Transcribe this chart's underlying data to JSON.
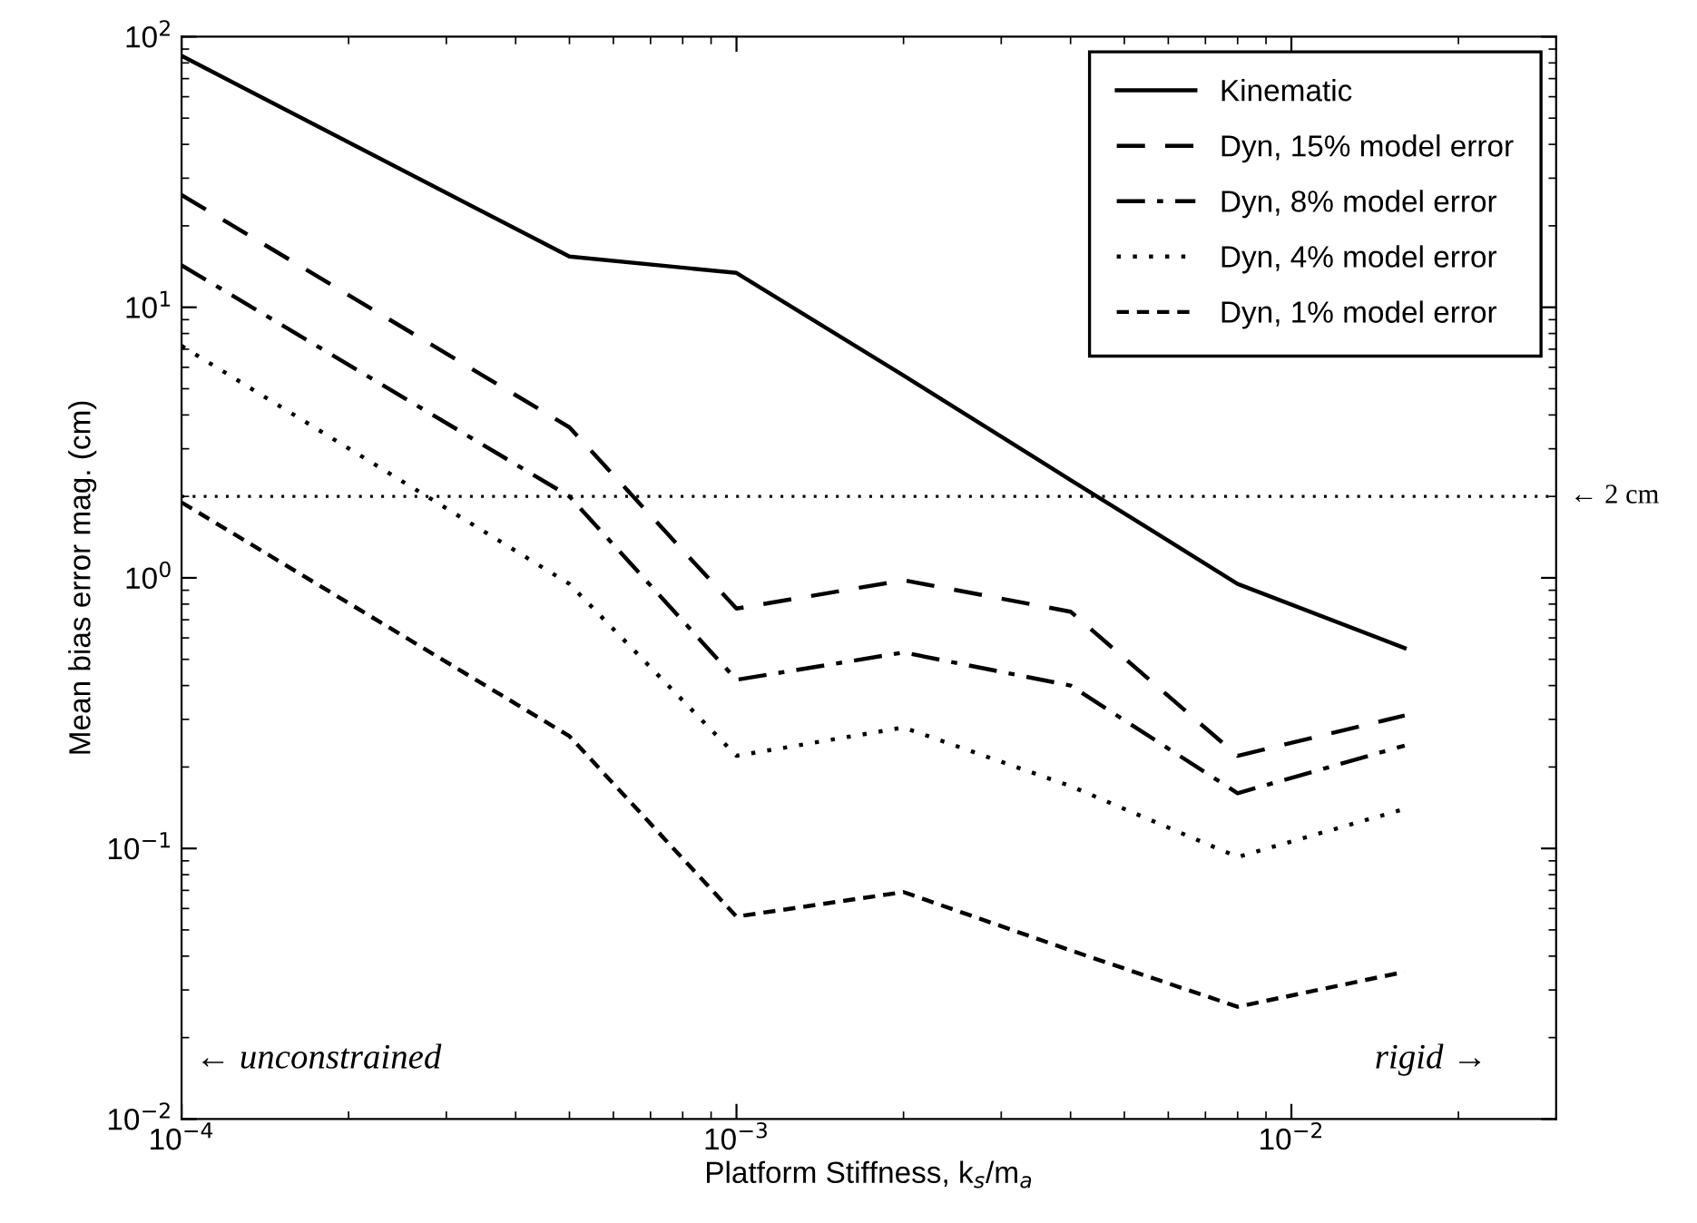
{
  "chart_data": {
    "type": "line",
    "xlabel": "Platform Stiffness, k$_{s}$/m$_{a}$",
    "ylabel": "Mean bias error mag. (cm)",
    "x": [
      0.0001,
      0.0005,
      0.001,
      0.002,
      0.004,
      0.008,
      0.016
    ],
    "series": [
      {
        "name": "Kinematic",
        "color": "#000000",
        "line_style": "solid",
        "values": [
          85,
          15.4,
          13.4,
          5.6,
          2.3,
          0.95,
          0.55
        ]
      },
      {
        "name": "Dyn, 15% model error",
        "color": "#000000",
        "line_style": "dashed",
        "values": [
          26,
          3.6,
          0.77,
          0.98,
          0.75,
          0.22,
          0.31
        ]
      },
      {
        "name": "Dyn, 8% model error",
        "color": "#000000",
        "line_style": "dashdot",
        "values": [
          14.3,
          2.0,
          0.42,
          0.53,
          0.4,
          0.16,
          0.24
        ]
      },
      {
        "name": "Dyn, 4% model error",
        "color": "#000000",
        "line_style": "dotted",
        "values": [
          7.2,
          0.95,
          0.22,
          0.28,
          0.17,
          0.093,
          0.14
        ]
      },
      {
        "name": "Dyn, 1% model error",
        "color": "#000000",
        "line_style": "densely_dashed",
        "values": [
          1.9,
          0.26,
          0.056,
          0.069,
          0.042,
          0.026,
          0.035
        ]
      }
    ],
    "log": "xy",
    "xlim": [
      0.0001,
      0.03
    ],
    "ylim": [
      0.01,
      100
    ],
    "xticks": [
      {
        "value": 0.0001,
        "label": "10$^{−4}$"
      },
      {
        "value": 0.001,
        "label": "10$^{−3}$"
      },
      {
        "value": 0.01,
        "label": "10$^{−2}$"
      }
    ],
    "yticks": [
      {
        "value": 0.01,
        "label": "10$^{−2}$"
      },
      {
        "value": 0.1,
        "label": "10$^{−1}$"
      },
      {
        "value": 1,
        "label": "10$^{0}$"
      },
      {
        "value": 10,
        "label": "10$^{1}$"
      },
      {
        "value": 100,
        "label": "10$^{2}$"
      }
    ],
    "ref_lines": [
      {
        "axis": "y",
        "value": 2,
        "label": "← 2 cm",
        "color": "#000000",
        "line_style": "dotted"
      }
    ],
    "annotations": [
      "← unconstrained",
      "rigid →"
    ],
    "legend": "top right",
    "grid": false
  }
}
